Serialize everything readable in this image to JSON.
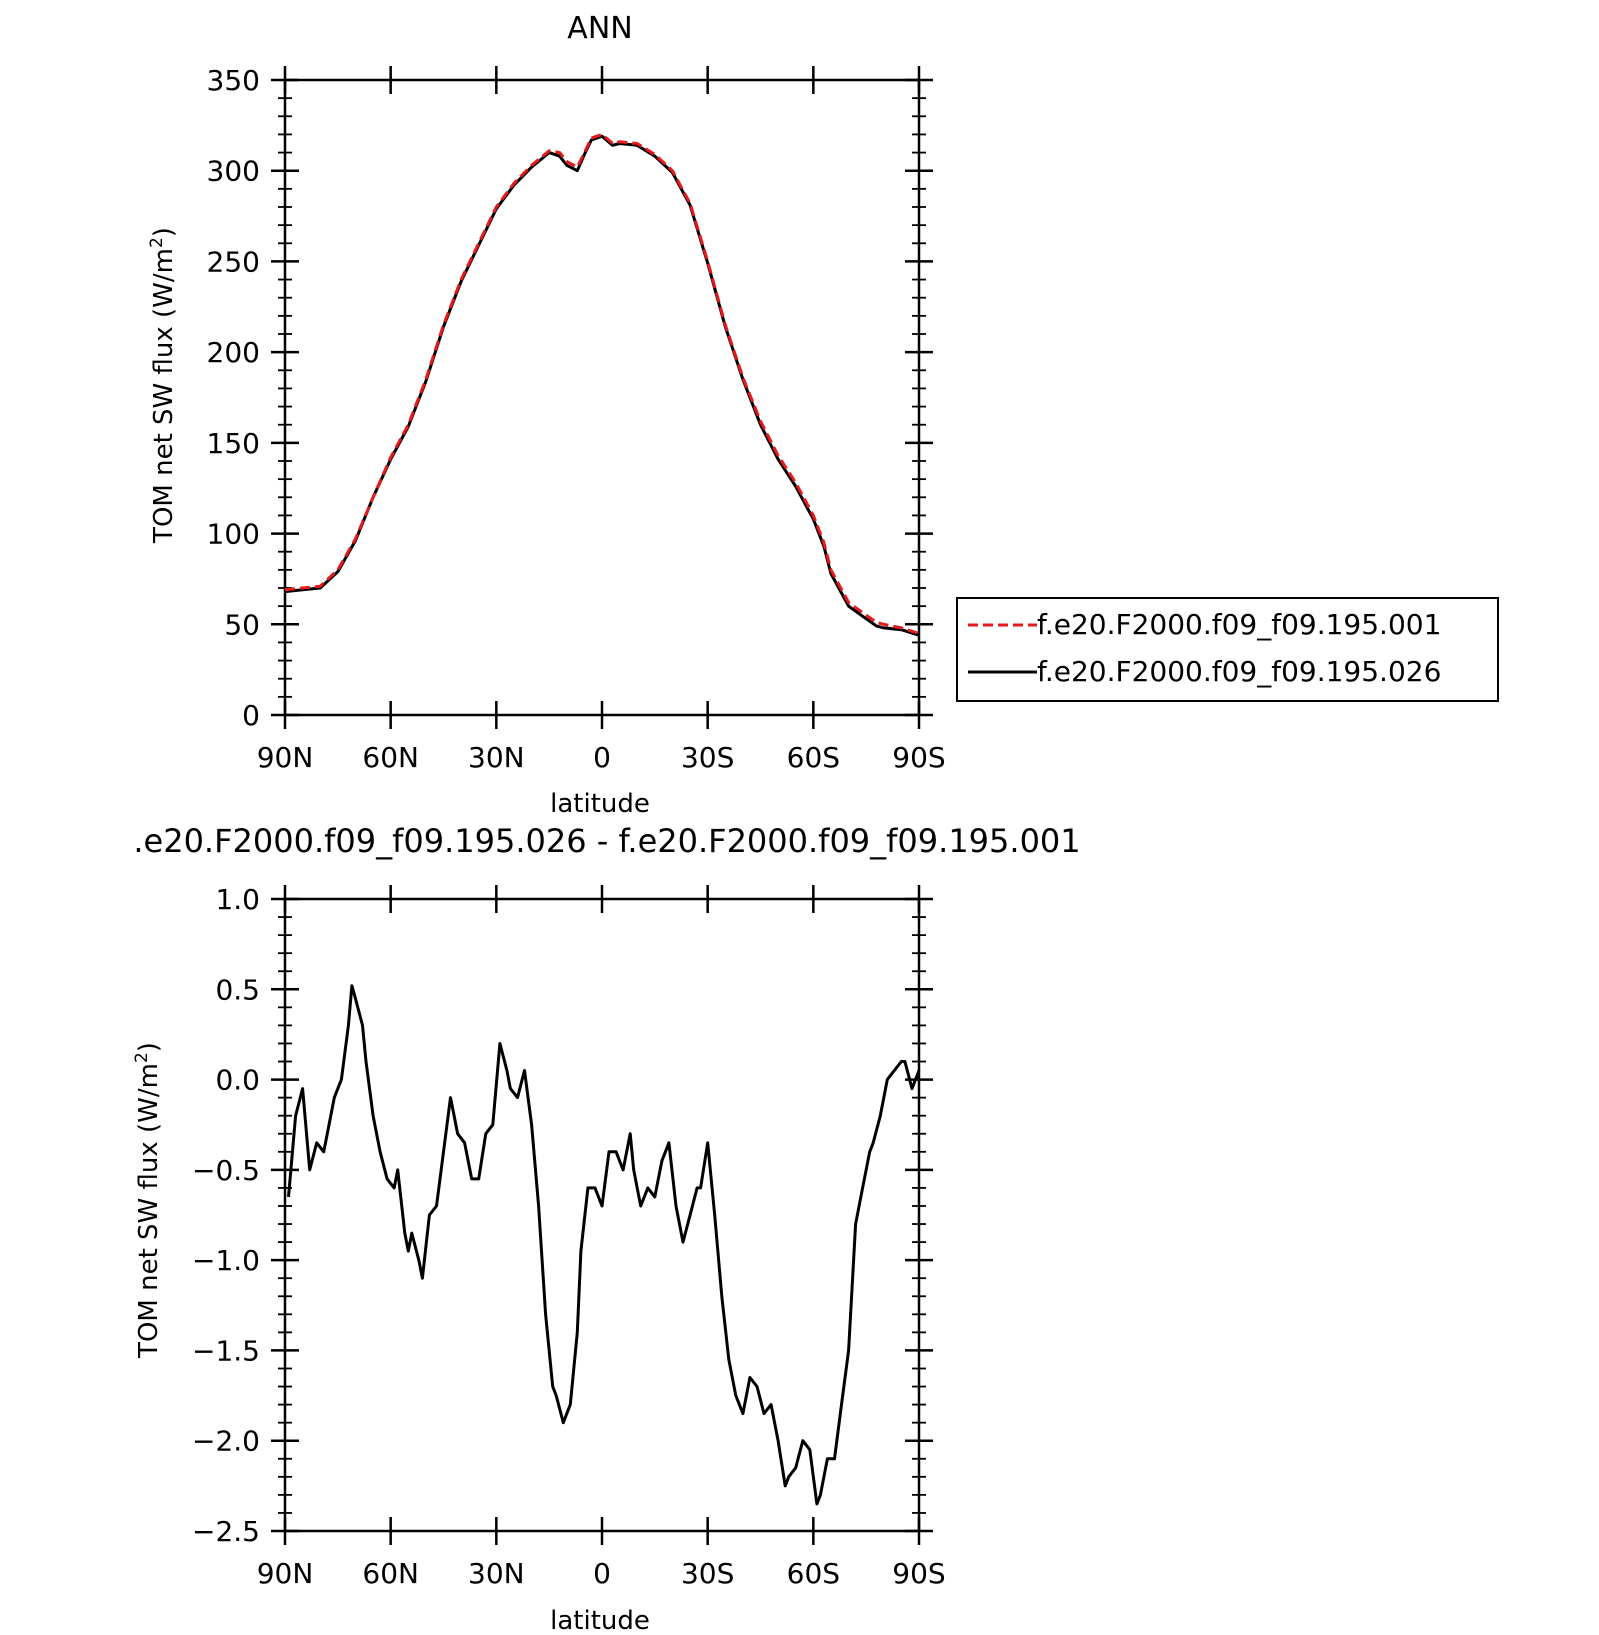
{
  "chart_data": [
    {
      "type": "line",
      "title": "ANN",
      "xlabel": "latitude",
      "ylabel": "TOM net SW flux (W/m²)",
      "ylabel_base": "TOM net SW flux (W/m",
      "ylabel_sup": "2",
      "ylabel_tail": ")",
      "xlim": [
        90,
        -90
      ],
      "ylim": [
        0,
        350
      ],
      "xticks": [
        90,
        60,
        30,
        0,
        -30,
        -60,
        -90
      ],
      "xtick_labels": [
        "90N",
        "60N",
        "30N",
        "0",
        "30S",
        "60S",
        "90S"
      ],
      "yticks": [
        0,
        50,
        100,
        150,
        200,
        250,
        300,
        350
      ],
      "ytick_labels": [
        "0",
        "50",
        "100",
        "150",
        "200",
        "250",
        "300",
        "350"
      ],
      "legend": {
        "placement": "right",
        "entries": [
          {
            "name": "f.e20.F2000.f09_f09.195.001",
            "color": "#e41a1c",
            "dash": "dashed"
          },
          {
            "name": "f.e20.F2000.f09_f09.195.026",
            "color": "#000000",
            "dash": "solid"
          }
        ]
      },
      "x": [
        90,
        85,
        80,
        75,
        70,
        65,
        60,
        55,
        50,
        45,
        40,
        35,
        30,
        25,
        20,
        15,
        12,
        10,
        7,
        5,
        3,
        0,
        -3,
        -5,
        -10,
        -15,
        -20,
        -25,
        -30,
        -35,
        -40,
        -45,
        -50,
        -55,
        -60,
        -63,
        -65,
        -70,
        -75,
        -78,
        -80,
        -85,
        -90
      ],
      "series": [
        {
          "name": "f.e20.F2000.f09_f09.195.001",
          "color": "#e41a1c",
          "dash": "dashed",
          "values": [
            69,
            70,
            71,
            80,
            97,
            120,
            142,
            160,
            185,
            215,
            240,
            260,
            280,
            293,
            303,
            311,
            310,
            305,
            302,
            310,
            318,
            320,
            315,
            316,
            315,
            309,
            300,
            282,
            250,
            215,
            186,
            162,
            143,
            128,
            110,
            95,
            80,
            62,
            55,
            51,
            50,
            48,
            45
          ]
        },
        {
          "name": "f.e20.F2000.f09_f09.195.026",
          "color": "#000000",
          "dash": "solid",
          "values": [
            68,
            69,
            70,
            79,
            96,
            120,
            141,
            159,
            184,
            214,
            239,
            259,
            279,
            292,
            302,
            310,
            308,
            303,
            300,
            309,
            317,
            319,
            314,
            315,
            314,
            308,
            299,
            281,
            249,
            214,
            185,
            160,
            141,
            126,
            108,
            93,
            78,
            60,
            53,
            49,
            48,
            47,
            44
          ]
        }
      ]
    },
    {
      "type": "line",
      "title": ".e20.F2000.f09_f09.195.026 - f.e20.F2000.f09_f09.195.001",
      "xlabel": "latitude",
      "ylabel": "TOM net SW flux (W/m²)",
      "ylabel_base": "TOM net SW flux (W/m",
      "ylabel_sup": "2",
      "ylabel_tail": ")",
      "xlim": [
        90,
        -90
      ],
      "ylim": [
        -2.5,
        1.0
      ],
      "xticks": [
        90,
        60,
        30,
        0,
        -30,
        -60,
        -90
      ],
      "xtick_labels": [
        "90N",
        "60N",
        "30N",
        "0",
        "30S",
        "60S",
        "90S"
      ],
      "yticks": [
        1.0,
        0.5,
        0.0,
        -0.5,
        -1.0,
        -1.5,
        -2.0,
        -2.5
      ],
      "ytick_labels": [
        "1.0",
        "0.5",
        "0.0",
        "−0.5",
        "−1.0",
        "−1.5",
        "−2.0",
        "−2.5"
      ],
      "x": [
        89,
        87,
        85,
        83,
        81,
        79,
        78,
        76,
        74,
        72,
        71,
        70,
        68,
        67,
        65,
        63,
        61,
        59,
        58,
        56,
        55,
        54,
        52,
        51,
        49,
        47,
        45,
        43,
        42,
        41,
        39,
        37,
        35,
        33,
        31,
        29,
        27,
        26,
        24,
        22,
        20,
        18,
        16,
        14,
        13,
        11,
        9,
        7,
        6,
        4,
        2,
        0,
        -2,
        -4,
        -6,
        -8,
        -9,
        -11,
        -13,
        -15,
        -17,
        -19,
        -21,
        -23,
        -25,
        -27,
        -28,
        -30,
        -32,
        -34,
        -36,
        -38,
        -40,
        -42,
        -44,
        -46,
        -48,
        -50,
        -52,
        -53,
        -55,
        -57,
        -59,
        -61,
        -62,
        -64,
        -66,
        -68,
        -70,
        -72,
        -74,
        -76,
        -77,
        -79,
        -81,
        -83,
        -85,
        -86,
        -88,
        -90
      ],
      "series": [
        {
          "name": "f.e20.F2000.f09_f09.195.026 - f.e20.F2000.f09_f09.195.001",
          "color": "#000000",
          "dash": "solid",
          "values": [
            -0.65,
            -0.2,
            -0.05,
            -0.5,
            -0.35,
            -0.4,
            -0.3,
            -0.1,
            0.0,
            0.3,
            0.52,
            0.45,
            0.3,
            0.1,
            -0.2,
            -0.4,
            -0.55,
            -0.6,
            -0.5,
            -0.85,
            -0.95,
            -0.85,
            -1.0,
            -1.1,
            -0.75,
            -0.7,
            -0.4,
            -0.1,
            -0.2,
            -0.3,
            -0.35,
            -0.55,
            -0.55,
            -0.3,
            -0.25,
            0.2,
            0.05,
            -0.05,
            -0.1,
            0.05,
            -0.25,
            -0.7,
            -1.3,
            -1.7,
            -1.75,
            -1.9,
            -1.8,
            -1.4,
            -0.95,
            -0.6,
            -0.6,
            -0.7,
            -0.4,
            -0.4,
            -0.5,
            -0.3,
            -0.5,
            -0.7,
            -0.6,
            -0.65,
            -0.45,
            -0.35,
            -0.7,
            -0.9,
            -0.75,
            -0.6,
            -0.6,
            -0.35,
            -0.75,
            -1.2,
            -1.55,
            -1.75,
            -1.85,
            -1.65,
            -1.7,
            -1.85,
            -1.8,
            -2.0,
            -2.25,
            -2.2,
            -2.15,
            -2.0,
            -2.05,
            -2.35,
            -2.3,
            -2.1,
            -2.1,
            -1.8,
            -1.5,
            -0.8,
            -0.6,
            -0.4,
            -0.35,
            -0.2,
            0.0,
            0.05,
            0.1,
            0.1,
            -0.05,
            0.05
          ]
        }
      ]
    }
  ]
}
